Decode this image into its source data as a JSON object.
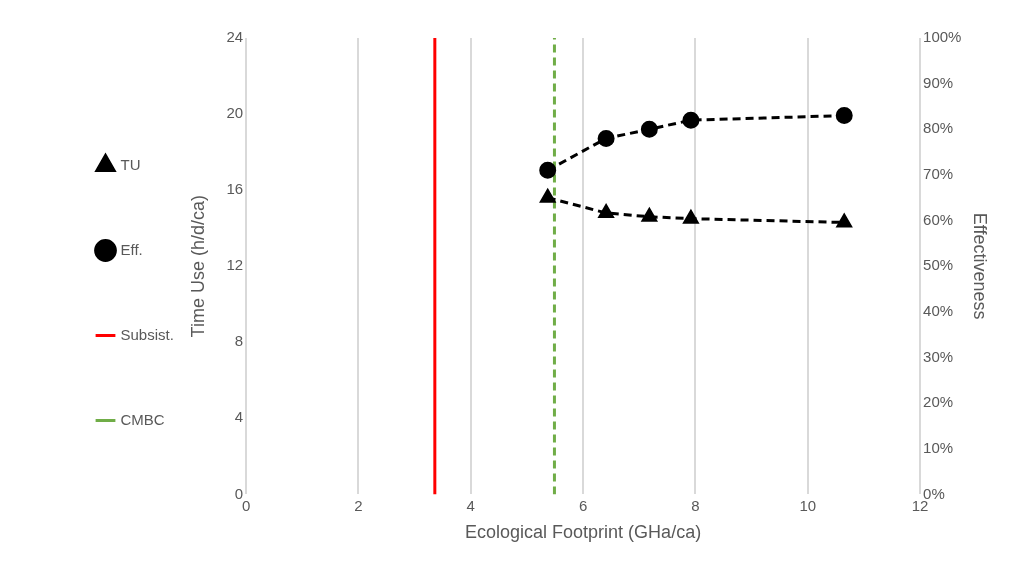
{
  "chart_data": {
    "type": "line",
    "xlabel": "Ecological Footprint (GHa/ca)",
    "ylabel": "Time Use (h/d/ca)",
    "y2label": "Effectiveness",
    "xlim": [
      0,
      12
    ],
    "xticks": [
      0,
      2,
      4,
      6,
      8,
      10,
      12
    ],
    "ylim": [
      0,
      24
    ],
    "yticks": [
      0,
      4,
      8,
      12,
      16,
      20,
      24
    ],
    "y2lim": [
      0,
      100
    ],
    "y2ticks": [
      {
        "value": 0,
        "label": "0%"
      },
      {
        "value": 10,
        "label": "10%"
      },
      {
        "value": 20,
        "label": "20%"
      },
      {
        "value": 30,
        "label": "30%"
      },
      {
        "value": 40,
        "label": "40%"
      },
      {
        "value": 50,
        "label": "50%"
      },
      {
        "value": 60,
        "label": "60%"
      },
      {
        "value": 70,
        "label": "70%"
      },
      {
        "value": 80,
        "label": "80%"
      },
      {
        "value": 90,
        "label": "90%"
      },
      {
        "value": 100,
        "label": "100%"
      }
    ],
    "grid": "x",
    "legend": "left",
    "series": [
      {
        "name": "TU",
        "color": "#000000",
        "marker": "triangle",
        "line_style": "dashed",
        "x": [
          5.37,
          6.41,
          7.18,
          7.92,
          10.65
        ],
        "values": [
          15.6,
          14.8,
          14.6,
          14.5,
          14.3
        ]
      },
      {
        "name": "Eff.",
        "color": "#000000",
        "marker": "circle",
        "line_style": "dashed",
        "axis": "y2",
        "x": [
          5.37,
          6.41,
          7.18,
          7.92,
          10.65
        ],
        "values": [
          71,
          78,
          80,
          82,
          83
        ]
      },
      {
        "name": "Subsist.",
        "color": "#ff0000",
        "marker": "none",
        "line_style": "solid",
        "x": [
          3.36,
          3.36
        ],
        "values": [
          0,
          24
        ]
      },
      {
        "name": "CMBC",
        "color": "#70ad47",
        "marker": "none",
        "line_style": "dashed",
        "x": [
          5.49,
          5.49
        ],
        "values": [
          0,
          24
        ]
      }
    ]
  }
}
